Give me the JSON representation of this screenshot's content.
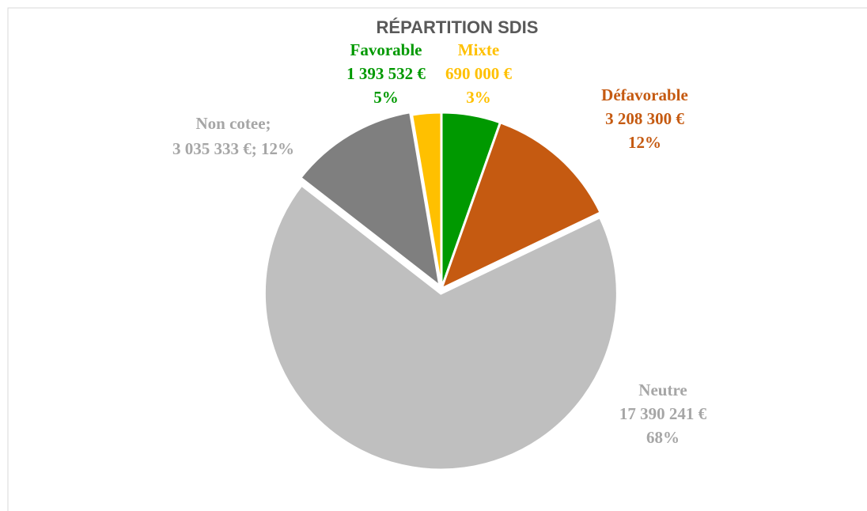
{
  "chart_data": {
    "type": "pie",
    "title": "RÉPARTITION SDIS",
    "categories": [
      "Favorable",
      "Défavorable",
      "Neutre",
      "Non cotee;",
      "Mixte"
    ],
    "values": [
      1393532,
      3208300,
      17390241,
      3035333,
      690000
    ],
    "value_labels": [
      "1 393 532 €",
      "3 208 300 €",
      "17 390 241 €",
      "3 035 333 €;",
      "690 000 €"
    ],
    "percent_labels": [
      "5%",
      "12%",
      "68%",
      "12%",
      "3%"
    ],
    "colors": [
      "#009900",
      "#c55a11",
      "#bfbfbf",
      "#7f7f7f",
      "#ffc000"
    ],
    "label_colors": [
      "#009900",
      "#c55a11",
      "#a6a6a6",
      "#a6a6a6",
      "#ffc000"
    ]
  }
}
